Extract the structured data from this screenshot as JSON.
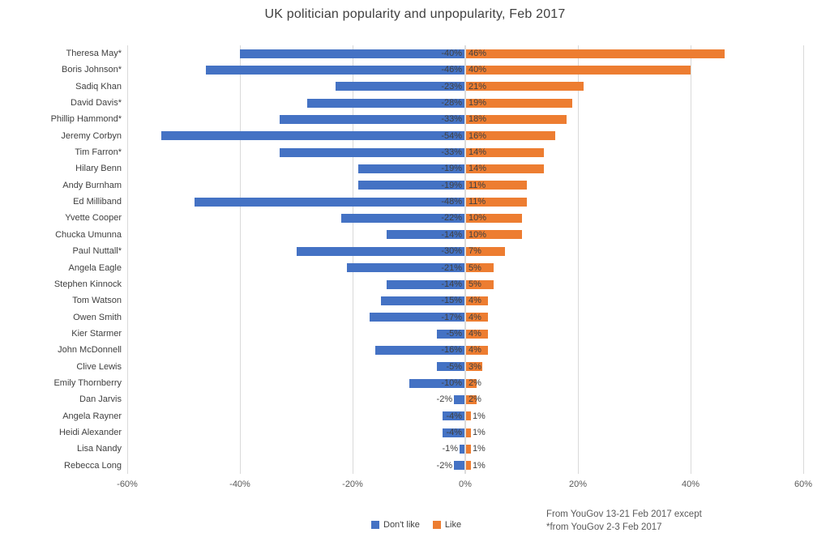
{
  "title": "UK politician popularity and unpopularity, Feb 2017",
  "colors": {
    "dont_like": "#4472C4",
    "like": "#ED7D31",
    "gridline": "#D9D9D9",
    "zero_line": "#DCDCDC",
    "text": "#404040",
    "axis_text": "#595959"
  },
  "note": {
    "line1": "From YouGov 13-21 Feb 2017 except",
    "line2": "*from YouGov 2-3 Feb 2017"
  },
  "chart_data": {
    "type": "bar",
    "orientation": "horizontal-diverging",
    "title": "UK politician popularity and unpopularity, Feb 2017",
    "categories": [
      "Theresa May*",
      "Boris Johnson*",
      "Sadiq Khan",
      "David Davis*",
      "Phillip Hammond*",
      "Jeremy Corbyn",
      "Tim Farron*",
      "Hilary Benn",
      "Andy Burnham",
      "Ed Milliband",
      "Yvette Cooper",
      "Chucka Umunna",
      "Paul Nuttall*",
      "Angela Eagle",
      "Stephen Kinnock",
      "Tom Watson",
      "Owen Smith",
      "Kier Starmer",
      "John McDonnell",
      "Clive Lewis",
      "Emily Thornberry",
      "Dan Jarvis",
      "Angela Rayner",
      "Heidi Alexander",
      "Lisa Nandy",
      "Rebecca Long"
    ],
    "series": [
      {
        "name": "Don't like",
        "color": "#4472C4",
        "values": [
          -40,
          -46,
          -23,
          -28,
          -33,
          -54,
          -33,
          -19,
          -19,
          -48,
          -22,
          -14,
          -30,
          -21,
          -14,
          -15,
          -17,
          -5,
          -16,
          -5,
          -10,
          -2,
          -4,
          -4,
          -1,
          -2
        ]
      },
      {
        "name": "Like",
        "color": "#ED7D31",
        "values": [
          46,
          40,
          21,
          19,
          18,
          16,
          14,
          14,
          11,
          11,
          10,
          10,
          7,
          5,
          5,
          4,
          4,
          4,
          4,
          3,
          2,
          2,
          1,
          1,
          1,
          1
        ]
      }
    ],
    "x_ticks": [
      "-60%",
      "-40%",
      "-20%",
      "0%",
      "20%",
      "40%",
      "60%"
    ],
    "xlim": [
      -60,
      60
    ],
    "grid": true,
    "legend_position": "bottom",
    "note": [
      "From YouGov 13-21 Feb 2017 except",
      "*from YouGov 2-3 Feb 2017"
    ]
  }
}
